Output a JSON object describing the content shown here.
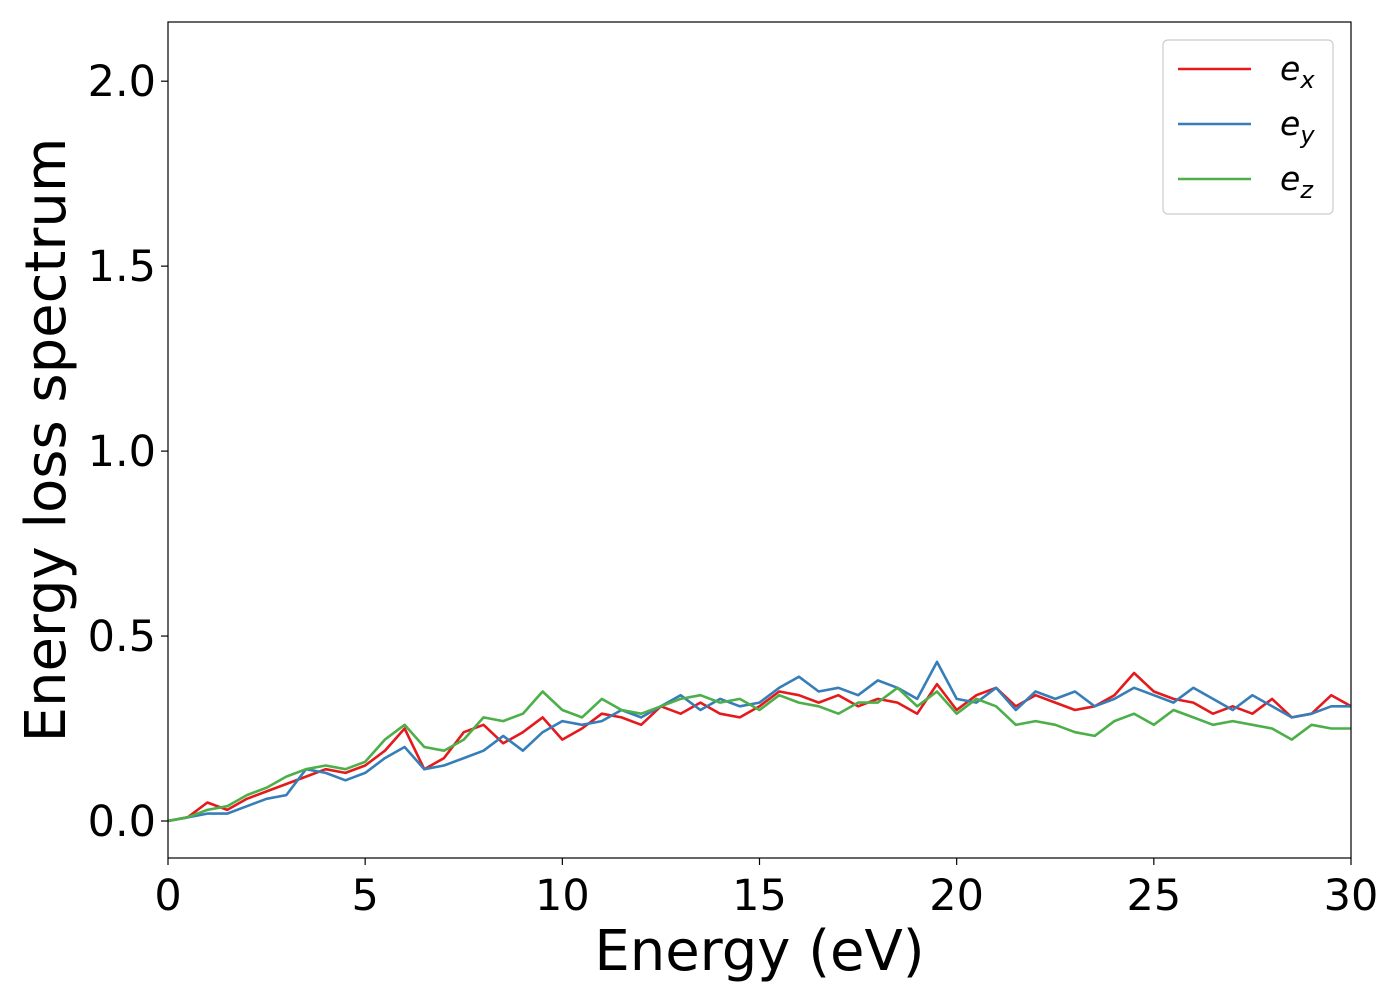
{
  "chart_data": {
    "type": "line",
    "title": "",
    "xlabel": "Energy (eV)",
    "ylabel": "Energy loss spectrum",
    "xlim": [
      0,
      30
    ],
    "ylim": [
      -0.1,
      2.16
    ],
    "xticks": [
      0,
      5,
      10,
      15,
      20,
      25,
      30
    ],
    "yticks": [
      0.0,
      0.5,
      1.0,
      1.5,
      2.0
    ],
    "xtick_labels": [
      "0",
      "5",
      "10",
      "15",
      "20",
      "25",
      "30"
    ],
    "ytick_labels": [
      "0.0",
      "0.5",
      "1.0",
      "1.5",
      "2.0"
    ],
    "grid": false,
    "legend_position": "top-right",
    "x": [
      0.0,
      0.5,
      1.0,
      1.5,
      2.0,
      2.5,
      3.0,
      3.5,
      4.0,
      4.5,
      5.0,
      5.5,
      6.0,
      6.5,
      7.0,
      7.5,
      8.0,
      8.5,
      9.0,
      9.5,
      10.0,
      10.5,
      11.0,
      11.5,
      12.0,
      12.5,
      13.0,
      13.5,
      14.0,
      14.5,
      15.0,
      15.5,
      16.0,
      16.5,
      17.0,
      17.5,
      18.0,
      18.5,
      19.0,
      19.5,
      20.0,
      20.5,
      21.0,
      21.5,
      22.0,
      22.5,
      23.0,
      23.5,
      24.0,
      24.5,
      25.0,
      25.5,
      26.0,
      26.5,
      27.0,
      27.5,
      28.0,
      28.5,
      29.0,
      29.5,
      30.0
    ],
    "series": [
      {
        "name": "e",
        "sub": "x",
        "color": "#e41a1c",
        "values": [
          0.0,
          0.01,
          0.05,
          0.03,
          0.06,
          0.08,
          0.1,
          0.12,
          0.14,
          0.13,
          0.15,
          0.19,
          0.25,
          0.14,
          0.17,
          0.24,
          0.26,
          0.21,
          0.24,
          0.28,
          0.22,
          0.25,
          0.29,
          0.28,
          0.26,
          0.31,
          0.29,
          0.32,
          0.29,
          0.28,
          0.31,
          0.35,
          0.34,
          0.32,
          0.34,
          0.31,
          0.33,
          0.32,
          0.29,
          0.37,
          0.3,
          0.34,
          0.36,
          0.31,
          0.34,
          0.32,
          0.3,
          0.31,
          0.34,
          0.4,
          0.35,
          0.33,
          0.32,
          0.29,
          0.31,
          0.29,
          0.33,
          0.28,
          0.29,
          0.34,
          0.31
        ]
      },
      {
        "name": "e",
        "sub": "y",
        "color": "#377eb8",
        "values": [
          0.0,
          0.01,
          0.02,
          0.02,
          0.04,
          0.06,
          0.07,
          0.14,
          0.13,
          0.11,
          0.13,
          0.17,
          0.2,
          0.14,
          0.15,
          0.17,
          0.19,
          0.23,
          0.19,
          0.24,
          0.27,
          0.26,
          0.27,
          0.3,
          0.28,
          0.31,
          0.34,
          0.3,
          0.33,
          0.31,
          0.32,
          0.36,
          0.39,
          0.35,
          0.36,
          0.34,
          0.38,
          0.36,
          0.33,
          0.43,
          0.33,
          0.32,
          0.36,
          0.3,
          0.35,
          0.33,
          0.35,
          0.31,
          0.33,
          0.36,
          0.34,
          0.32,
          0.36,
          0.33,
          0.3,
          0.34,
          0.31,
          0.28,
          0.29,
          0.31,
          0.31
        ]
      },
      {
        "name": "e",
        "sub": "z",
        "color": "#4daf4a",
        "values": [
          0.0,
          0.01,
          0.03,
          0.04,
          0.07,
          0.09,
          0.12,
          0.14,
          0.15,
          0.14,
          0.16,
          0.22,
          0.26,
          0.2,
          0.19,
          0.22,
          0.28,
          0.27,
          0.29,
          0.35,
          0.3,
          0.28,
          0.33,
          0.3,
          0.29,
          0.31,
          0.33,
          0.34,
          0.32,
          0.33,
          0.3,
          0.34,
          0.32,
          0.31,
          0.29,
          0.32,
          0.32,
          0.36,
          0.31,
          0.35,
          0.29,
          0.33,
          0.31,
          0.26,
          0.27,
          0.26,
          0.24,
          0.23,
          0.27,
          0.29,
          0.26,
          0.3,
          0.28,
          0.26,
          0.27,
          0.26,
          0.25,
          0.22,
          0.26,
          0.25,
          0.25
        ]
      }
    ]
  }
}
